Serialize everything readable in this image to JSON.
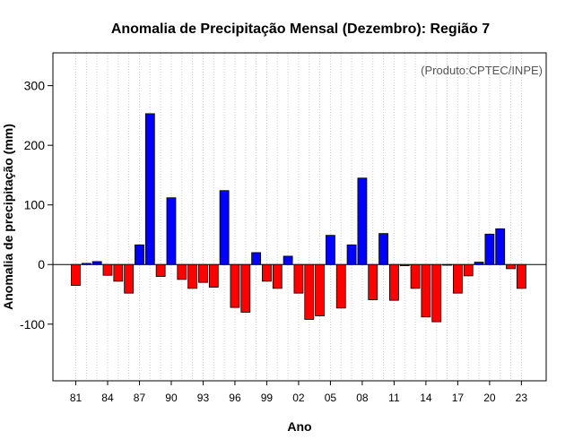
{
  "chart_data": {
    "type": "bar",
    "title": "Anomalia de Precipitação Mensal (Dezembro): Região 7",
    "xlabel": "Ano",
    "ylabel": "Anomalia de precipitação (mm)",
    "annotation": "(Produto:CPTEC/INPE)",
    "ylim": [
      -195,
      355
    ],
    "yticks": [
      -100,
      0,
      100,
      200,
      300
    ],
    "ytick_labels": [
      "-100",
      "0",
      "100",
      "200",
      "300"
    ],
    "xtick_labels": [
      "81",
      "84",
      "87",
      "90",
      "93",
      "96",
      "99",
      "02",
      "05",
      "08",
      "11",
      "14",
      "17",
      "20",
      "23"
    ],
    "years": [
      1981,
      1982,
      1983,
      1984,
      1985,
      1986,
      1987,
      1988,
      1989,
      1990,
      1991,
      1992,
      1993,
      1994,
      1995,
      1996,
      1997,
      1998,
      1999,
      2000,
      2001,
      2002,
      2003,
      2004,
      2005,
      2006,
      2007,
      2008,
      2009,
      2010,
      2011,
      2012,
      2013,
      2014,
      2015,
      2016,
      2017,
      2018,
      2019,
      2020,
      2021,
      2022,
      2023
    ],
    "values": [
      -35,
      2,
      5,
      -18,
      -28,
      -48,
      33,
      253,
      -20,
      112,
      -25,
      -40,
      -30,
      -38,
      124,
      -72,
      -80,
      20,
      -28,
      -40,
      14,
      -48,
      -92,
      -86,
      49,
      -73,
      33,
      145,
      -59,
      52,
      -60,
      -2,
      -40,
      -88,
      -96,
      0,
      -48,
      -19,
      4,
      51,
      60,
      -7,
      -40
    ],
    "colors": {
      "positive": "#0000ff",
      "negative": "#ff0000",
      "grid": "#cccccc"
    },
    "grid": true
  }
}
